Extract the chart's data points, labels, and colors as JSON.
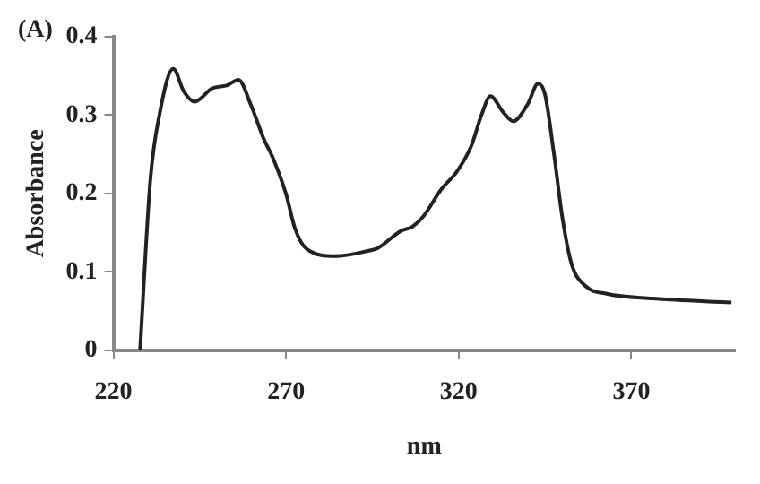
{
  "chart_data": {
    "type": "line",
    "xlabel": "nm",
    "ylabel": "Absorbance",
    "annotations": [
      "(A)"
    ],
    "x": [
      227.7,
      230.7,
      233.3,
      237.3,
      240.4,
      243.5,
      248.6,
      253,
      256.2,
      259.8,
      263.4,
      266.4,
      270,
      272.6,
      276,
      284.3,
      294,
      296.5,
      303.2,
      306.7,
      309.8,
      314.9,
      319.5,
      323.6,
      326.6,
      329.2,
      332.8,
      335.8,
      339.9,
      343,
      345,
      347.6,
      350.1,
      352.7,
      356.7,
      362.9,
      376.1,
      399
    ],
    "series": [
      {
        "color": "#222222",
        "values": [
          0,
          0.218,
          0.3,
          0.359,
          0.33,
          0.317,
          0.334,
          0.338,
          0.345,
          0.313,
          0.271,
          0.243,
          0.199,
          0.155,
          0.129,
          0.12,
          0.127,
          0.13,
          0.152,
          0.158,
          0.171,
          0.205,
          0.228,
          0.26,
          0.3,
          0.324,
          0.304,
          0.292,
          0.313,
          0.34,
          0.326,
          0.25,
          0.167,
          0.11,
          0.082,
          0.072,
          0.066,
          0.061
        ]
      }
    ],
    "xlim": [
      220,
      400
    ],
    "xticks": [
      220,
      270,
      320,
      370
    ],
    "ylim": [
      0,
      0.4
    ],
    "yticks": [
      0,
      0.1,
      0.2,
      0.3,
      0.4
    ],
    "grid": false,
    "legend": false,
    "marker": "none",
    "line_style": "solid"
  }
}
